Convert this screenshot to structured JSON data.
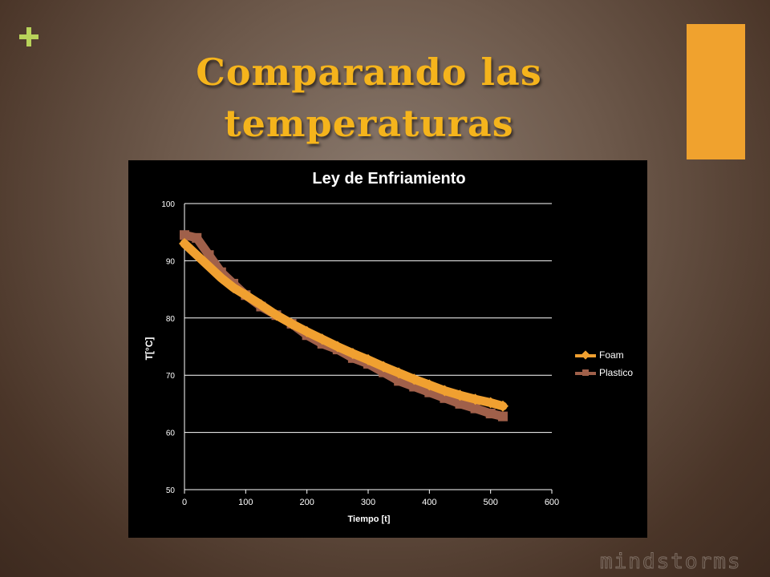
{
  "slide": {
    "title": "Comparando las temperaturas",
    "watermark": "mindstorms",
    "accent_color": "#f0a22e",
    "plus_color": "#b8d35a",
    "title_color": "#f5b41c"
  },
  "chart_data": {
    "type": "line",
    "title": "Ley de Enfriamiento",
    "xlabel": "Tiempo [t]",
    "ylabel": "T[°C]",
    "xlim": [
      0,
      600
    ],
    "ylim": [
      50,
      100
    ],
    "x_ticks": [
      0,
      100,
      200,
      300,
      400,
      500,
      600
    ],
    "y_ticks": [
      50,
      60,
      70,
      80,
      90,
      100
    ],
    "grid": "horizontal",
    "legend_position": "right",
    "series": [
      {
        "name": "Foam",
        "color": "#f0a030",
        "x": [
          0,
          20,
          40,
          60,
          80,
          100,
          125,
          150,
          175,
          200,
          225,
          250,
          275,
          300,
          325,
          350,
          375,
          400,
          425,
          450,
          475,
          500,
          520
        ],
        "y": [
          93,
          91,
          89,
          87,
          85.3,
          84,
          82.3,
          80.5,
          79,
          77.6,
          76.3,
          75,
          73.8,
          72.7,
          71.5,
          70.4,
          69.3,
          68.3,
          67.3,
          66.5,
          65.8,
          65.2,
          64.6
        ]
      },
      {
        "name": "Plastico",
        "color": "#a0604a",
        "x": [
          0,
          20,
          40,
          60,
          80,
          100,
          125,
          150,
          175,
          200,
          225,
          250,
          275,
          300,
          325,
          350,
          375,
          400,
          425,
          450,
          475,
          500,
          520
        ],
        "y": [
          94.5,
          94,
          91,
          88,
          86,
          84,
          82,
          80.5,
          79,
          77,
          75.5,
          74.5,
          73,
          72,
          70.5,
          69,
          68,
          67,
          66,
          65,
          64.2,
          63.3,
          62.8
        ]
      }
    ]
  }
}
